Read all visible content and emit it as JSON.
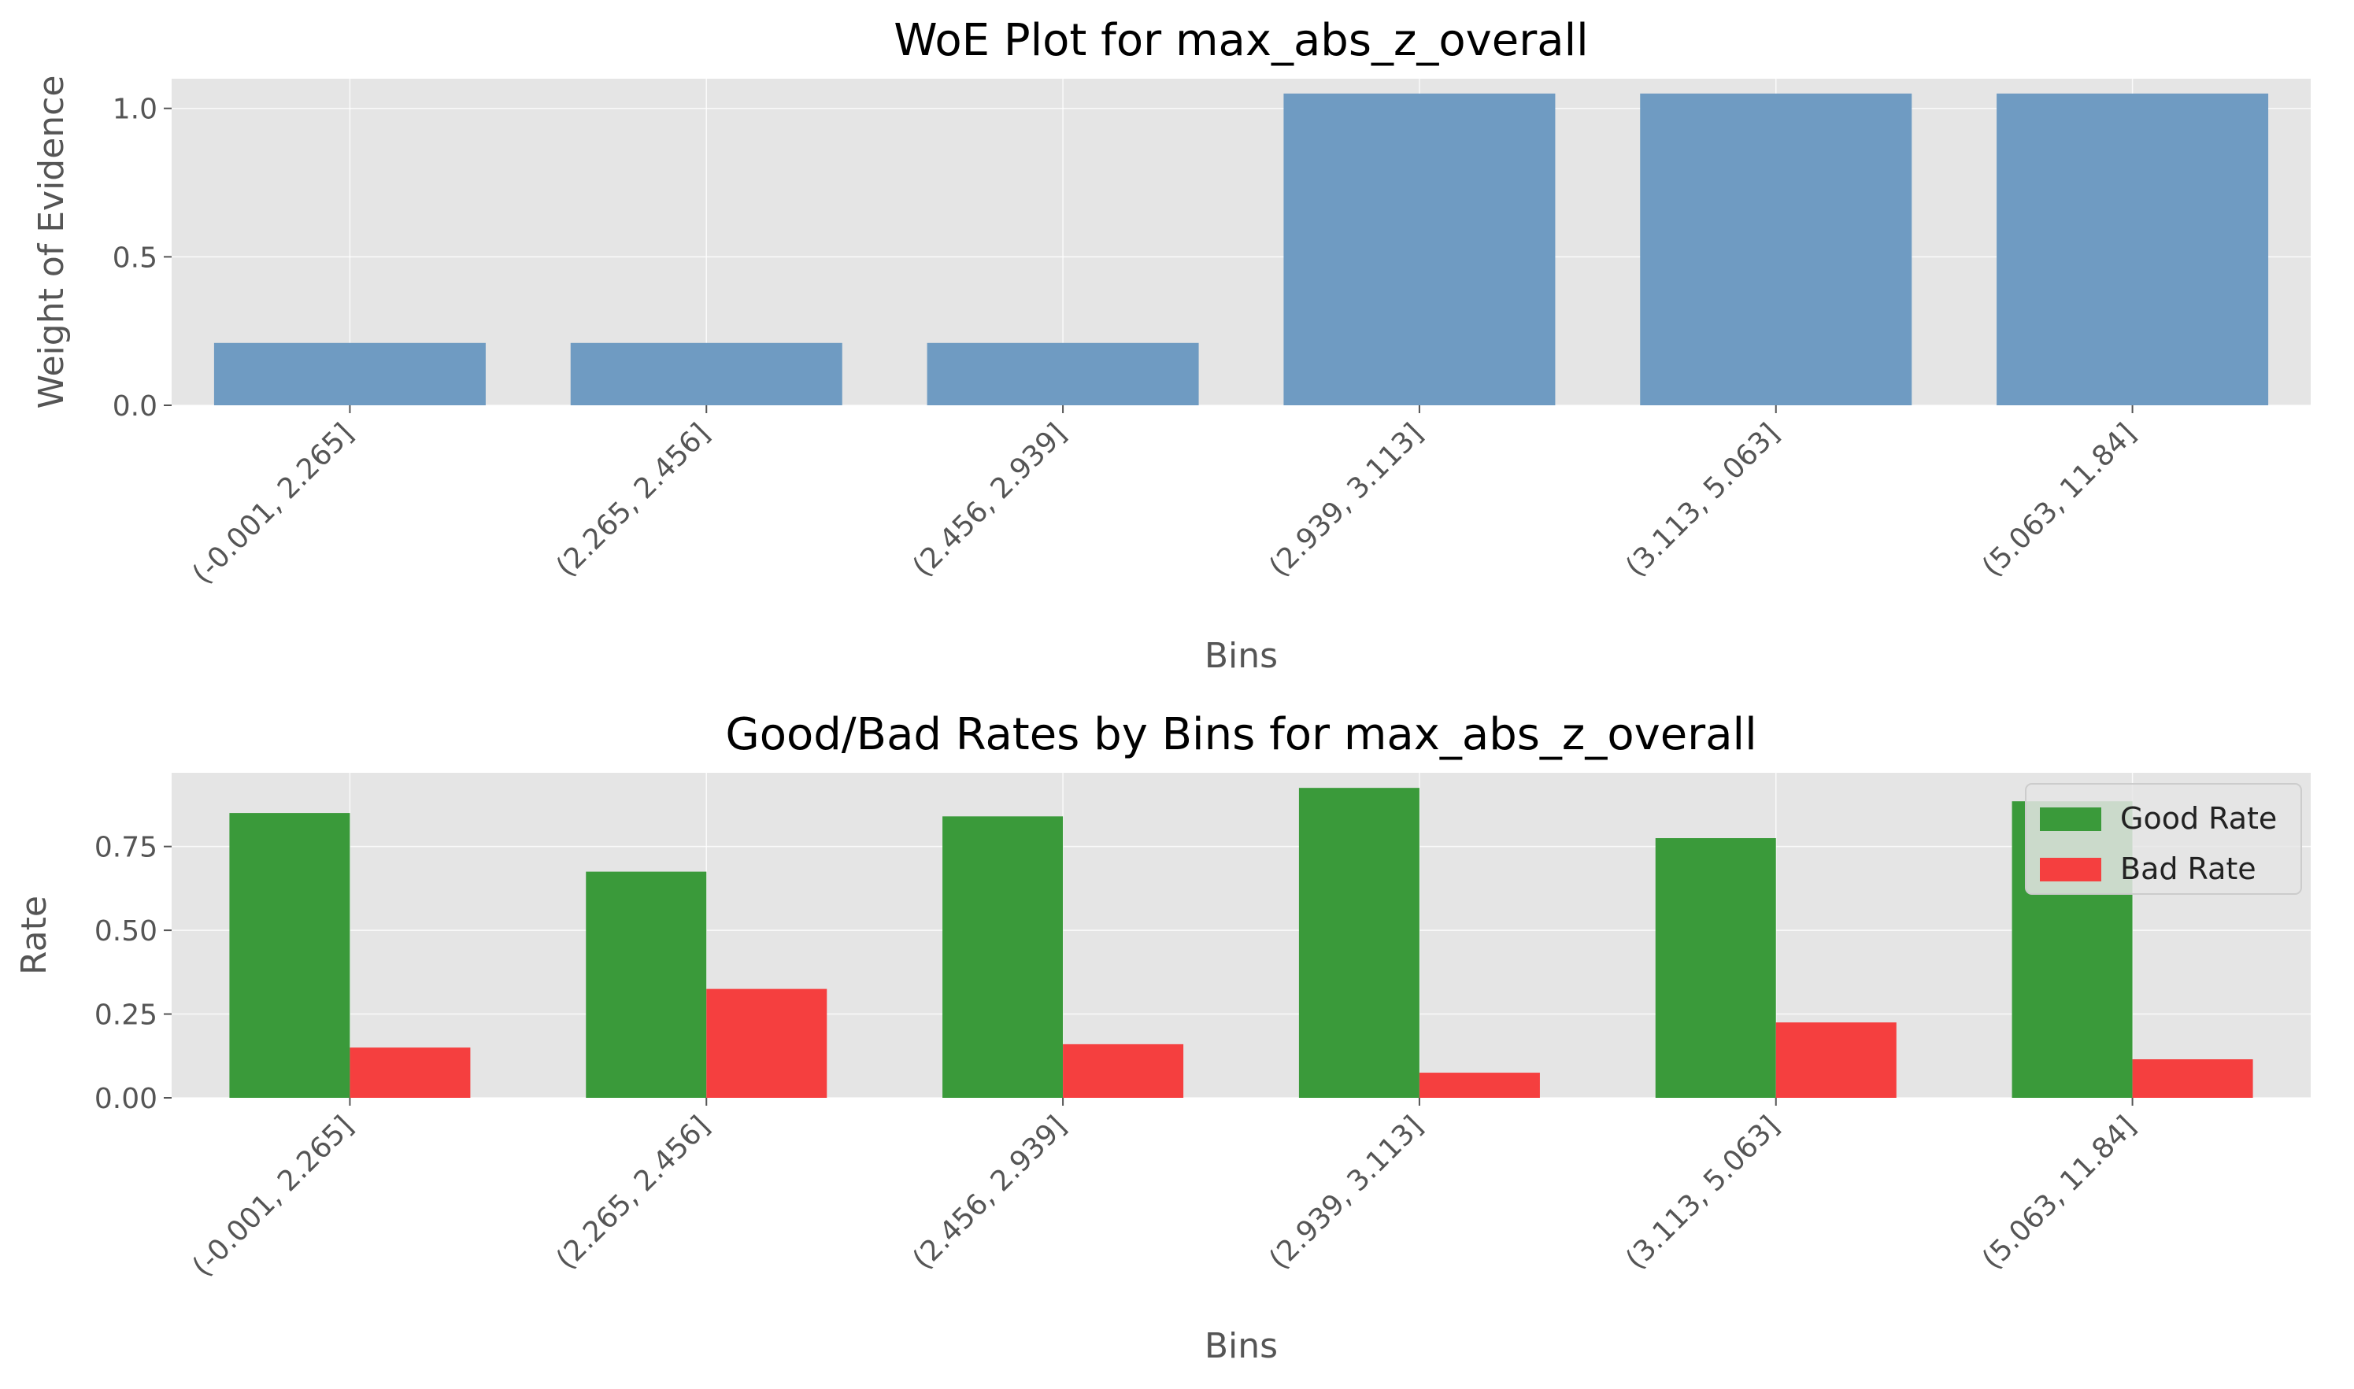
{
  "chart_data": [
    {
      "type": "bar",
      "title": "WoE Plot for max_abs_z_overall",
      "xlabel": "Bins",
      "ylabel": "Weight of Evidence",
      "categories": [
        "(-0.001, 2.265]",
        "(2.265, 2.456]",
        "(2.456, 2.939]",
        "(2.939, 3.113]",
        "(3.113, 5.063]",
        "(5.063, 11.84]"
      ],
      "values": [
        0.21,
        0.21,
        0.21,
        1.05,
        1.05,
        1.05
      ],
      "ylim": [
        0,
        1.1
      ],
      "yticks": [
        "0.0",
        "0.5",
        "1.0"
      ],
      "grid": true,
      "colors": {
        "bar": "#6f9bc2",
        "background": "#e5e5e5",
        "grid": "#ffffff"
      }
    },
    {
      "type": "bar",
      "title": "Good/Bad Rates by Bins for max_abs_z_overall",
      "xlabel": "Bins",
      "ylabel": "Rate",
      "categories": [
        "(-0.001, 2.265]",
        "(2.265, 2.456]",
        "(2.456, 2.939]",
        "(2.939, 3.113]",
        "(3.113, 5.063]",
        "(5.063, 11.84]"
      ],
      "series": [
        {
          "name": "Good Rate",
          "values": [
            0.85,
            0.675,
            0.84,
            0.925,
            0.775,
            0.885
          ],
          "color": "#3a9a3a"
        },
        {
          "name": "Bad Rate",
          "values": [
            0.15,
            0.325,
            0.16,
            0.075,
            0.225,
            0.115
          ],
          "color": "#f53f3f"
        }
      ],
      "ylim": [
        0,
        0.97
      ],
      "yticks": [
        "0.00",
        "0.25",
        "0.50",
        "0.75"
      ],
      "grid": true,
      "legend_position": "top-right",
      "colors": {
        "background": "#e5e5e5",
        "grid": "#ffffff"
      }
    }
  ]
}
